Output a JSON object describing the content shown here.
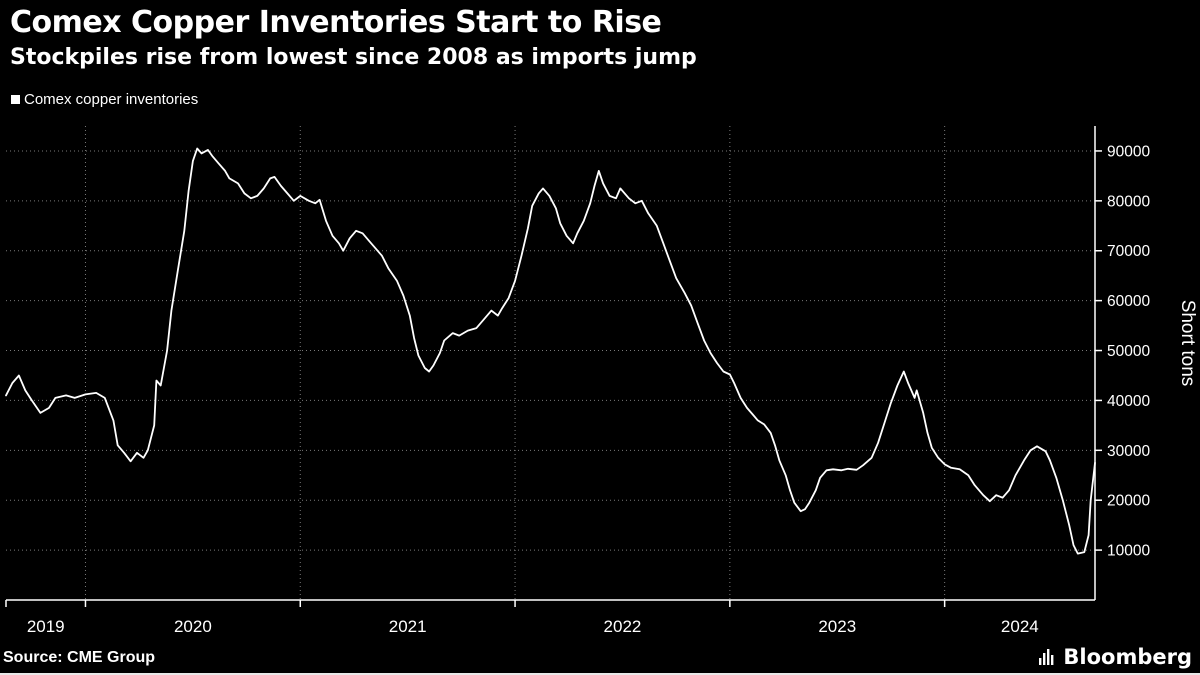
{
  "title": "Comex Copper Inventories Start to Rise",
  "subtitle": "Stockpiles rise from lowest since 2008 as imports jump",
  "legend": {
    "label": "Comex copper inventories",
    "marker_color": "#ffffff"
  },
  "source": "Source: CME Group",
  "branding": "Bloomberg",
  "colors": {
    "background": "#000000",
    "text": "#ffffff",
    "line": "#ffffff",
    "grid": "#7a7a7a",
    "axis": "#ffffff"
  },
  "chart_data": {
    "type": "line",
    "title": "Comex Copper Inventories Start to Rise",
    "subtitle": "Stockpiles rise from lowest since 2008 as imports jump",
    "xlabel": "",
    "ylabel": "Short tons",
    "legend_position": "top-left",
    "grid": "dotted",
    "xlim": [
      2019.63,
      2024.7
    ],
    "ylim": [
      0,
      95000
    ],
    "yticks": [
      10000,
      20000,
      30000,
      40000,
      50000,
      60000,
      70000,
      80000,
      90000
    ],
    "xtick_years": [
      2019,
      2020,
      2021,
      2022,
      2023,
      2024
    ],
    "x_gridline_years": [
      2020,
      2021,
      2022,
      2023,
      2024
    ],
    "series": [
      {
        "name": "Comex copper inventories",
        "color": "#ffffff",
        "points": [
          [
            2019.63,
            41000
          ],
          [
            2019.66,
            43500
          ],
          [
            2019.69,
            45000
          ],
          [
            2019.72,
            42000
          ],
          [
            2019.75,
            40000
          ],
          [
            2019.79,
            37500
          ],
          [
            2019.83,
            38500
          ],
          [
            2019.86,
            40500
          ],
          [
            2019.91,
            41000
          ],
          [
            2019.95,
            40500
          ],
          [
            2020.0,
            41200
          ],
          [
            2020.05,
            41500
          ],
          [
            2020.09,
            40500
          ],
          [
            2020.13,
            36000
          ],
          [
            2020.15,
            31000
          ],
          [
            2020.18,
            29500
          ],
          [
            2020.21,
            27800
          ],
          [
            2020.24,
            29500
          ],
          [
            2020.27,
            28500
          ],
          [
            2020.29,
            30000
          ],
          [
            2020.32,
            35000
          ],
          [
            2020.33,
            44000
          ],
          [
            2020.35,
            43000
          ],
          [
            2020.38,
            50000
          ],
          [
            2020.4,
            58000
          ],
          [
            2020.43,
            66000
          ],
          [
            2020.46,
            74000
          ],
          [
            2020.48,
            82000
          ],
          [
            2020.5,
            88000
          ],
          [
            2020.52,
            90500
          ],
          [
            2020.54,
            89500
          ],
          [
            2020.57,
            90200
          ],
          [
            2020.59,
            89000
          ],
          [
            2020.62,
            87500
          ],
          [
            2020.65,
            86000
          ],
          [
            2020.67,
            84500
          ],
          [
            2020.71,
            83500
          ],
          [
            2020.74,
            81500
          ],
          [
            2020.77,
            80500
          ],
          [
            2020.8,
            81000
          ],
          [
            2020.83,
            82500
          ],
          [
            2020.86,
            84500
          ],
          [
            2020.88,
            84800
          ],
          [
            2020.91,
            83000
          ],
          [
            2020.94,
            81500
          ],
          [
            2020.97,
            80000
          ],
          [
            2021.0,
            81000
          ],
          [
            2021.04,
            80000
          ],
          [
            2021.07,
            79500
          ],
          [
            2021.09,
            80200
          ],
          [
            2021.12,
            76000
          ],
          [
            2021.15,
            73000
          ],
          [
            2021.18,
            71500
          ],
          [
            2021.2,
            70000
          ],
          [
            2021.23,
            72500
          ],
          [
            2021.26,
            74000
          ],
          [
            2021.29,
            73500
          ],
          [
            2021.32,
            72000
          ],
          [
            2021.35,
            70500
          ],
          [
            2021.38,
            69000
          ],
          [
            2021.41,
            66500
          ],
          [
            2021.45,
            64000
          ],
          [
            2021.48,
            61000
          ],
          [
            2021.51,
            57000
          ],
          [
            2021.53,
            52500
          ],
          [
            2021.55,
            49000
          ],
          [
            2021.58,
            46500
          ],
          [
            2021.6,
            45800
          ],
          [
            2021.62,
            47000
          ],
          [
            2021.65,
            49500
          ],
          [
            2021.67,
            52000
          ],
          [
            2021.71,
            53500
          ],
          [
            2021.74,
            53000
          ],
          [
            2021.78,
            54000
          ],
          [
            2021.82,
            54500
          ],
          [
            2021.86,
            56500
          ],
          [
            2021.89,
            58000
          ],
          [
            2021.92,
            57000
          ],
          [
            2021.94,
            58500
          ],
          [
            2021.97,
            60500
          ],
          [
            2022.0,
            64000
          ],
          [
            2022.03,
            69000
          ],
          [
            2022.06,
            74500
          ],
          [
            2022.08,
            79000
          ],
          [
            2022.11,
            81500
          ],
          [
            2022.13,
            82500
          ],
          [
            2022.16,
            81000
          ],
          [
            2022.19,
            78500
          ],
          [
            2022.21,
            75500
          ],
          [
            2022.24,
            73000
          ],
          [
            2022.27,
            71500
          ],
          [
            2022.29,
            73500
          ],
          [
            2022.32,
            76000
          ],
          [
            2022.35,
            79500
          ],
          [
            2022.37,
            83000
          ],
          [
            2022.39,
            86000
          ],
          [
            2022.41,
            83500
          ],
          [
            2022.44,
            81000
          ],
          [
            2022.47,
            80500
          ],
          [
            2022.49,
            82500
          ],
          [
            2022.53,
            80500
          ],
          [
            2022.56,
            79500
          ],
          [
            2022.59,
            80000
          ],
          [
            2022.62,
            77500
          ],
          [
            2022.66,
            75000
          ],
          [
            2022.69,
            71500
          ],
          [
            2022.72,
            68000
          ],
          [
            2022.75,
            64500
          ],
          [
            2022.79,
            61500
          ],
          [
            2022.82,
            59000
          ],
          [
            2022.85,
            55500
          ],
          [
            2022.88,
            52000
          ],
          [
            2022.91,
            49500
          ],
          [
            2022.94,
            47500
          ],
          [
            2022.97,
            45800
          ],
          [
            2023.0,
            45200
          ],
          [
            2023.02,
            43500
          ],
          [
            2023.05,
            40500
          ],
          [
            2023.08,
            38500
          ],
          [
            2023.11,
            37000
          ],
          [
            2023.13,
            36000
          ],
          [
            2023.16,
            35200
          ],
          [
            2023.19,
            33500
          ],
          [
            2023.21,
            31000
          ],
          [
            2023.23,
            28000
          ],
          [
            2023.26,
            25000
          ],
          [
            2023.28,
            22000
          ],
          [
            2023.3,
            19500
          ],
          [
            2023.33,
            17800
          ],
          [
            2023.35,
            18200
          ],
          [
            2023.37,
            19500
          ],
          [
            2023.4,
            22000
          ],
          [
            2023.42,
            24500
          ],
          [
            2023.45,
            26000
          ],
          [
            2023.48,
            26200
          ],
          [
            2023.52,
            26000
          ],
          [
            2023.55,
            26300
          ],
          [
            2023.59,
            26100
          ],
          [
            2023.62,
            27000
          ],
          [
            2023.66,
            28500
          ],
          [
            2023.69,
            31500
          ],
          [
            2023.72,
            35500
          ],
          [
            2023.75,
            39500
          ],
          [
            2023.78,
            43000
          ],
          [
            2023.81,
            45800
          ],
          [
            2023.83,
            43500
          ],
          [
            2023.86,
            40500
          ],
          [
            2023.87,
            42000
          ],
          [
            2023.9,
            37500
          ],
          [
            2023.92,
            33500
          ],
          [
            2023.94,
            30500
          ],
          [
            2023.97,
            28500
          ],
          [
            2024.0,
            27200
          ],
          [
            2024.03,
            26500
          ],
          [
            2024.07,
            26200
          ],
          [
            2024.11,
            25000
          ],
          [
            2024.14,
            23000
          ],
          [
            2024.18,
            21000
          ],
          [
            2024.21,
            19800
          ],
          [
            2024.24,
            21000
          ],
          [
            2024.27,
            20500
          ],
          [
            2024.3,
            22000
          ],
          [
            2024.33,
            25000
          ],
          [
            2024.37,
            28000
          ],
          [
            2024.4,
            30000
          ],
          [
            2024.43,
            30800
          ],
          [
            2024.47,
            29800
          ],
          [
            2024.49,
            28000
          ],
          [
            2024.52,
            24500
          ],
          [
            2024.55,
            20000
          ],
          [
            2024.58,
            15000
          ],
          [
            2024.6,
            11000
          ],
          [
            2024.62,
            9300
          ],
          [
            2024.65,
            9600
          ],
          [
            2024.67,
            13000
          ],
          [
            2024.68,
            20000
          ],
          [
            2024.7,
            27500
          ]
        ]
      }
    ]
  }
}
